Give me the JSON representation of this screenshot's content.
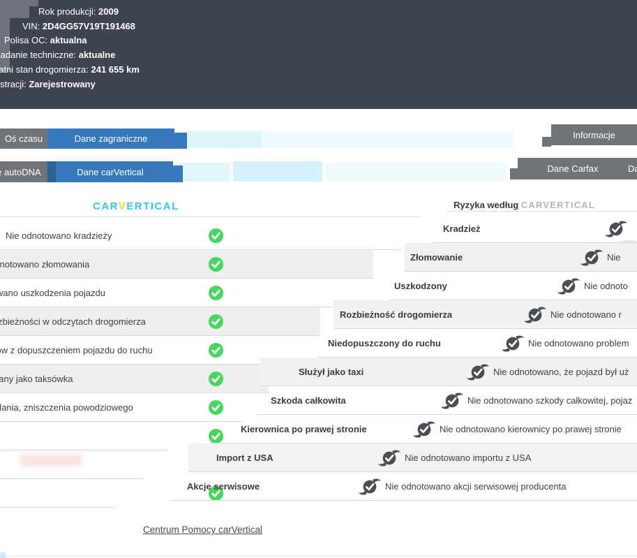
{
  "header": {
    "lines": [
      {
        "label": "Rok produkcji:",
        "value": "2009"
      },
      {
        "label": "VIN:",
        "value": "2D4GG57V19T191468"
      },
      {
        "label": "Polisa OC:",
        "value": "aktualna"
      },
      {
        "label": "Badanie techniczne:",
        "value": "aktualne"
      },
      {
        "label": "Ostatni stan drogomierza:",
        "value": "241 655 km"
      },
      {
        "label": "Status rejestracji:",
        "value": "Zarejestrowany"
      }
    ]
  },
  "tabs": {
    "os_czasu": "Oś czasu",
    "dane_zagraniczne": "Dane zagraniczne",
    "informacje": "Informacje",
    "dane_autodna": "Dane autoDNA",
    "dane_carvertical": "Dane carVertical",
    "dane_carfax": "Dane Carfax",
    "dane_cut": "Dane"
  },
  "brand": {
    "part1": "CAR",
    "part2": "V",
    "part3": "ERTICAL"
  },
  "risk_header": {
    "prefix": "Ryzyka według ",
    "brand": "CARVERTICAL"
  },
  "left_rows": [
    {
      "label": "Nie odnotowano kradzieży"
    },
    {
      "label": "Nie odnotowano złomowania"
    },
    {
      "label": "Nie odnotowano uszkodzenia pojazdu"
    },
    {
      "label": "Nie odnotowano rozbieżności w odczytach drogomierza"
    },
    {
      "label": "Nie odnotowano problemów z dopuszczeniem pojazdu do ruchu"
    },
    {
      "label": "Nie odnotowano, że pojazd był używany jako taksówka"
    },
    {
      "label": "Nie odnotowano zalania, zniszczenia powodziowego"
    },
    {
      "label": ""
    },
    {
      "label": ""
    },
    {
      "label": ""
    }
  ],
  "right_rows": [
    {
      "label": "Kradzież",
      "status": ""
    },
    {
      "label": "Złomowanie",
      "status": "Nie"
    },
    {
      "label": "Uszkodzony",
      "status": "Nie odnoto"
    },
    {
      "label": "Rozbieżność drogomierza",
      "status": "Nie odnotowano r"
    },
    {
      "label": "Niedopuszczony do ruchu",
      "status": "Nie odnotowano problem"
    },
    {
      "label": "Służył jako taxi",
      "status": "Nie odnotowano, że pojazd był uż"
    },
    {
      "label": "Szkoda całkowita",
      "status": "Nie odnotowano szkody całkowitej, pojaz"
    },
    {
      "label": "Kierownica po prawej stronie",
      "status": "Nie odnotowano kierownicy po prawej stronie"
    },
    {
      "label": "Import z USA",
      "status": "Nie odnotowano importu z USA"
    },
    {
      "label": "Akcje serwisowe",
      "status": "Nie odnotowano akcji serwisowej producenta"
    }
  ],
  "footer": {
    "help_link": "Centrum Pomocy carVertical"
  },
  "colors": {
    "header_bg": "#3e4450",
    "tab_blue": "#3578bb",
    "tab_gray": "#6f7478",
    "green_check": "#44d95e",
    "dark_check": "#4a4f55",
    "brand_cyan": "#2ec8f5",
    "brand_yellow": "#ffd60b"
  }
}
